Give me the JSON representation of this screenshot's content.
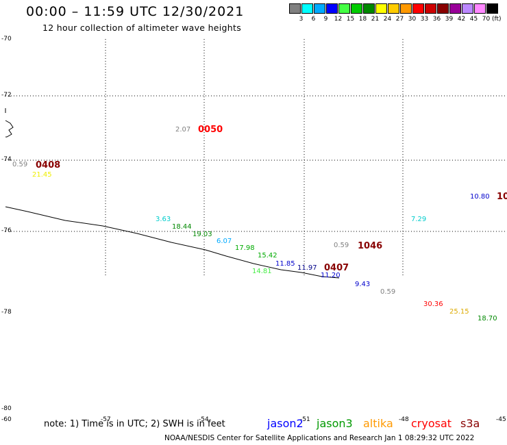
{
  "title": "00:00 – 11:59 UTC 12/30/2021",
  "subtitle": "12 hour collection of altimeter wave heights",
  "colorbar": {
    "swatches": [
      "#808080",
      "#00ffff",
      "#00aaff",
      "#0000ff",
      "#44ff44",
      "#00cc00",
      "#008800",
      "#ffff00",
      "#ffcc00",
      "#ff9900",
      "#ff0000",
      "#cc0000",
      "#880000",
      "#990099",
      "#bb88ff",
      "#ff88ff",
      "#000000"
    ],
    "labels": [
      "3",
      "6",
      "9",
      "12",
      "15",
      "18",
      "21",
      "24",
      "27",
      "30",
      "33",
      "36",
      "39",
      "42",
      "45",
      "70"
    ],
    "unit": "(ft)"
  },
  "lat_labels": [
    "-70",
    "-72",
    "-74",
    "-76",
    "-78",
    "-80"
  ],
  "lon_labels": [
    "-60",
    "-57",
    "-54",
    "-51",
    "-48",
    "-45"
  ],
  "values": [
    {
      "text": "2.07",
      "color": "#808080"
    },
    {
      "text": "0.59",
      "color": "#808080"
    },
    {
      "text": "21.45",
      "color": "#eeee00"
    },
    {
      "text": "10.80",
      "color": "#0000cc"
    },
    {
      "text": "3.63",
      "color": "#00cccc"
    },
    {
      "text": "18.44",
      "color": "#008800"
    },
    {
      "text": "19.03",
      "color": "#008800"
    },
    {
      "text": "6.07",
      "color": "#00aaff"
    },
    {
      "text": "17.98",
      "color": "#00aa00"
    },
    {
      "text": "7.29",
      "color": "#00cccc"
    },
    {
      "text": "0.59",
      "color": "#808080"
    },
    {
      "text": "15.42",
      "color": "#00aa00"
    },
    {
      "text": "11.85",
      "color": "#0000cc"
    },
    {
      "text": "14.81",
      "color": "#44ee44"
    },
    {
      "text": "11.97",
      "color": "#000088"
    },
    {
      "text": "11.20",
      "color": "#0000cc"
    },
    {
      "text": "9.43",
      "color": "#0000cc"
    },
    {
      "text": "0.59",
      "color": "#808080"
    },
    {
      "text": "30.36",
      "color": "#ff0000"
    },
    {
      "text": "25.15",
      "color": "#ddaa00"
    },
    {
      "text": "18.70",
      "color": "#008800"
    }
  ],
  "passes": [
    {
      "text": "0050",
      "color": "#ff0000"
    },
    {
      "text": "0408",
      "color": "#880000"
    },
    {
      "text": "10",
      "color": "#880000"
    },
    {
      "text": "1046",
      "color": "#880000"
    },
    {
      "text": "0407",
      "color": "#880000"
    }
  ],
  "note": "note: 1) Time is in UTC; 2) SWH is in feet",
  "satellites": [
    {
      "name": "jason2",
      "color": "#0000ff"
    },
    {
      "name": "jason3",
      "color": "#009900"
    },
    {
      "name": "altika",
      "color": "#ff9900"
    },
    {
      "name": "cryosat",
      "color": "#ff0000"
    },
    {
      "name": "s3a",
      "color": "#880000"
    }
  ],
  "footer": "NOAA/NESDIS Center for Satellite Applications and Research   Jan  1 08:29:32 UTC 2022"
}
